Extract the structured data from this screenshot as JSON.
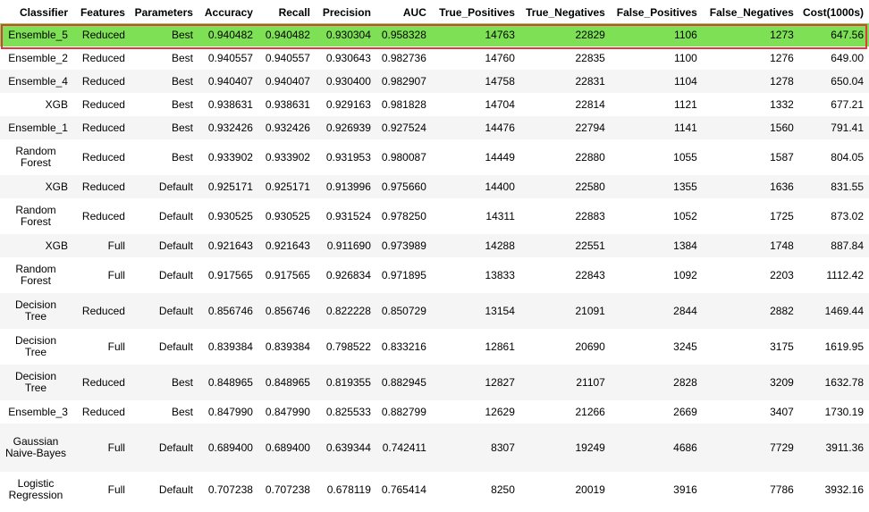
{
  "columns": [
    "Classifier",
    "Features",
    "Parameters",
    "Accuracy",
    "Recall",
    "Precision",
    "AUC",
    "True_Positives",
    "True_Negatives",
    "False_Positives",
    "False_Negatives",
    "Cost(1000s)"
  ],
  "rows": [
    [
      "Ensemble_5",
      "Reduced",
      "Best",
      "0.940482",
      "0.940482",
      "0.930304",
      "0.958328",
      "14763",
      "22829",
      "1106",
      "1273",
      "647.56"
    ],
    [
      "Ensemble_2",
      "Reduced",
      "Best",
      "0.940557",
      "0.940557",
      "0.930643",
      "0.982736",
      "14760",
      "22835",
      "1100",
      "1276",
      "649.00"
    ],
    [
      "Ensemble_4",
      "Reduced",
      "Best",
      "0.940407",
      "0.940407",
      "0.930400",
      "0.982907",
      "14758",
      "22831",
      "1104",
      "1278",
      "650.04"
    ],
    [
      "XGB",
      "Reduced",
      "Best",
      "0.938631",
      "0.938631",
      "0.929163",
      "0.981828",
      "14704",
      "22814",
      "1121",
      "1332",
      "677.21"
    ],
    [
      "Ensemble_1",
      "Reduced",
      "Best",
      "0.932426",
      "0.932426",
      "0.926939",
      "0.927524",
      "14476",
      "22794",
      "1141",
      "1560",
      "791.41"
    ],
    [
      "Random Forest",
      "Reduced",
      "Best",
      "0.933902",
      "0.933902",
      "0.931953",
      "0.980087",
      "14449",
      "22880",
      "1055",
      "1587",
      "804.05"
    ],
    [
      "XGB",
      "Reduced",
      "Default",
      "0.925171",
      "0.925171",
      "0.913996",
      "0.975660",
      "14400",
      "22580",
      "1355",
      "1636",
      "831.55"
    ],
    [
      "Random Forest",
      "Reduced",
      "Default",
      "0.930525",
      "0.930525",
      "0.931524",
      "0.978250",
      "14311",
      "22883",
      "1052",
      "1725",
      "873.02"
    ],
    [
      "XGB",
      "Full",
      "Default",
      "0.921643",
      "0.921643",
      "0.911690",
      "0.973989",
      "14288",
      "22551",
      "1384",
      "1748",
      "887.84"
    ],
    [
      "Random Forest",
      "Full",
      "Default",
      "0.917565",
      "0.917565",
      "0.926834",
      "0.971895",
      "13833",
      "22843",
      "1092",
      "2203",
      "1112.42"
    ],
    [
      "Decision Tree",
      "Reduced",
      "Default",
      "0.856746",
      "0.856746",
      "0.822228",
      "0.850729",
      "13154",
      "21091",
      "2844",
      "2882",
      "1469.44"
    ],
    [
      "Decision Tree",
      "Full",
      "Default",
      "0.839384",
      "0.839384",
      "0.798522",
      "0.833216",
      "12861",
      "20690",
      "3245",
      "3175",
      "1619.95"
    ],
    [
      "Decision Tree",
      "Reduced",
      "Best",
      "0.848965",
      "0.848965",
      "0.819355",
      "0.882945",
      "12827",
      "21107",
      "2828",
      "3209",
      "1632.78"
    ],
    [
      "Ensemble_3",
      "Reduced",
      "Best",
      "0.847990",
      "0.847990",
      "0.825533",
      "0.882799",
      "12629",
      "21266",
      "2669",
      "3407",
      "1730.19"
    ],
    [
      "Gaussian Naive-Bayes",
      "Full",
      "Default",
      "0.689400",
      "0.689400",
      "0.639344",
      "0.742411",
      "8307",
      "19249",
      "4686",
      "7729",
      "3911.36"
    ],
    [
      "Logistic Regression",
      "Full",
      "Default",
      "0.707238",
      "0.707238",
      "0.678119",
      "0.765414",
      "8250",
      "20019",
      "3916",
      "7786",
      "3932.16"
    ]
  ],
  "highlighted_row": 0,
  "colors": {
    "highlight_fill": "#7ee055",
    "highlight_border": "#e0393e",
    "stripe": "#f5f5f5"
  }
}
